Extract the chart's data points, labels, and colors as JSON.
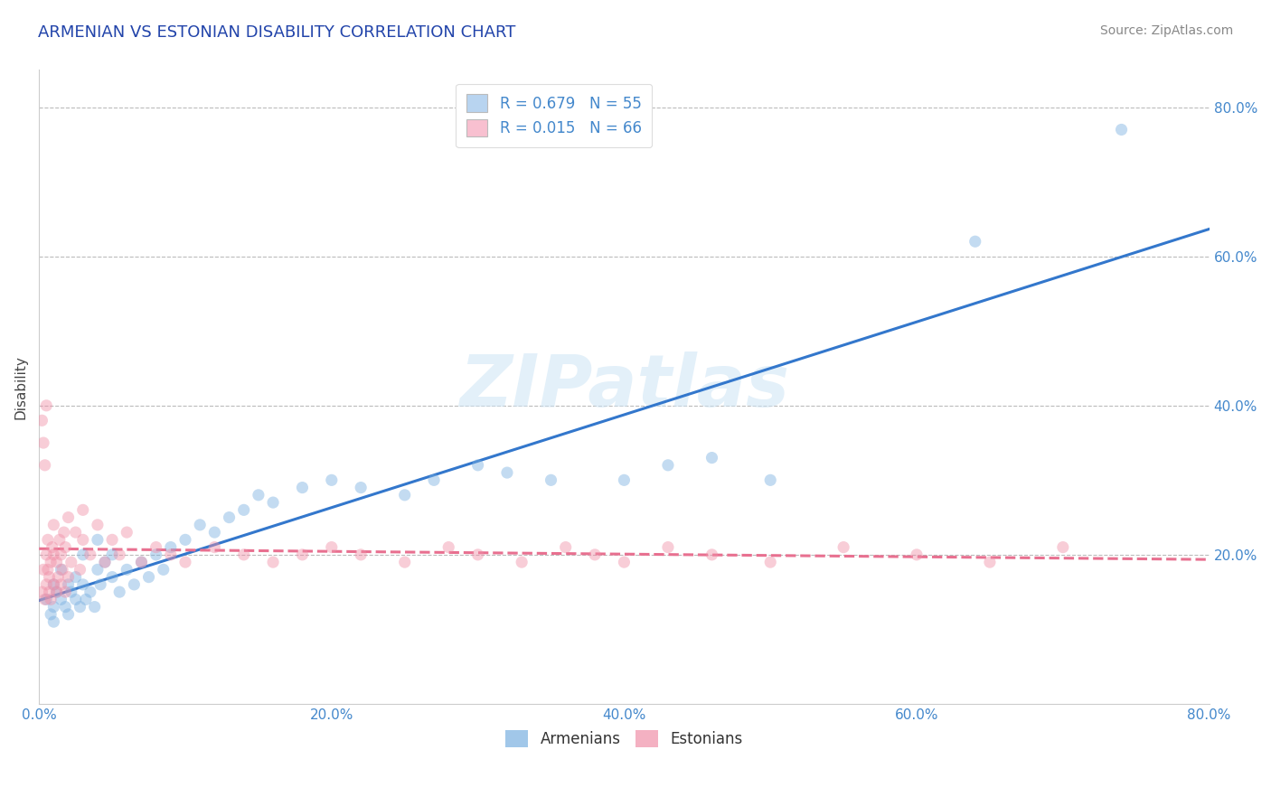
{
  "title": "ARMENIAN VS ESTONIAN DISABILITY CORRELATION CHART",
  "source": "Source: ZipAtlas.com",
  "ylabel": "Disability",
  "watermark": "ZIPatlas",
  "legend_entries": [
    {
      "label": "R = 0.679   N = 55",
      "color": "#b8d4f0"
    },
    {
      "label": "R = 0.015   N = 66",
      "color": "#f8c0d0"
    }
  ],
  "bottom_legend": [
    "Armenians",
    "Estonians"
  ],
  "armenian_color": "#7ab0e0",
  "estonian_color": "#f090a8",
  "armenian_line_color": "#3377cc",
  "estonian_line_color": "#e87090",
  "xlim": [
    0.0,
    0.8
  ],
  "ylim": [
    0.0,
    0.85
  ],
  "xtick_vals": [
    0.0,
    0.2,
    0.4,
    0.6,
    0.8
  ],
  "xtick_labels": [
    "0.0%",
    "20.0%",
    "40.0%",
    "60.0%",
    "80.0%"
  ],
  "ytick_right_labels": [
    "",
    "20.0%",
    "40.0%",
    "60.0%",
    "80.0%"
  ],
  "background_color": "#ffffff",
  "title_color": "#2244aa",
  "title_fontsize": 13,
  "tick_label_color": "#4488cc",
  "axis_label_color": "#444444",
  "marker_size": 90,
  "marker_alpha": 0.45,
  "line_width": 2.2,
  "armenian_x": [
    0.005,
    0.008,
    0.01,
    0.01,
    0.01,
    0.012,
    0.015,
    0.015,
    0.018,
    0.02,
    0.02,
    0.022,
    0.025,
    0.025,
    0.028,
    0.03,
    0.03,
    0.032,
    0.035,
    0.038,
    0.04,
    0.04,
    0.042,
    0.045,
    0.05,
    0.05,
    0.055,
    0.06,
    0.065,
    0.07,
    0.075,
    0.08,
    0.085,
    0.09,
    0.1,
    0.11,
    0.12,
    0.13,
    0.14,
    0.15,
    0.16,
    0.18,
    0.2,
    0.22,
    0.25,
    0.27,
    0.3,
    0.32,
    0.35,
    0.4,
    0.43,
    0.46,
    0.5,
    0.64,
    0.74
  ],
  "armenian_y": [
    0.14,
    0.12,
    0.11,
    0.16,
    0.13,
    0.15,
    0.14,
    0.18,
    0.13,
    0.12,
    0.16,
    0.15,
    0.14,
    0.17,
    0.13,
    0.16,
    0.2,
    0.14,
    0.15,
    0.13,
    0.18,
    0.22,
    0.16,
    0.19,
    0.17,
    0.2,
    0.15,
    0.18,
    0.16,
    0.19,
    0.17,
    0.2,
    0.18,
    0.21,
    0.22,
    0.24,
    0.23,
    0.25,
    0.26,
    0.28,
    0.27,
    0.29,
    0.3,
    0.29,
    0.28,
    0.3,
    0.32,
    0.31,
    0.3,
    0.3,
    0.32,
    0.33,
    0.3,
    0.62,
    0.77
  ],
  "estonian_x": [
    0.002,
    0.003,
    0.004,
    0.005,
    0.005,
    0.006,
    0.006,
    0.007,
    0.007,
    0.008,
    0.008,
    0.009,
    0.01,
    0.01,
    0.01,
    0.012,
    0.012,
    0.013,
    0.014,
    0.015,
    0.015,
    0.016,
    0.017,
    0.018,
    0.018,
    0.02,
    0.02,
    0.022,
    0.025,
    0.028,
    0.03,
    0.03,
    0.035,
    0.04,
    0.045,
    0.05,
    0.055,
    0.06,
    0.07,
    0.08,
    0.09,
    0.1,
    0.12,
    0.14,
    0.16,
    0.18,
    0.2,
    0.22,
    0.25,
    0.28,
    0.3,
    0.33,
    0.36,
    0.38,
    0.4,
    0.43,
    0.46,
    0.5,
    0.55,
    0.6,
    0.65,
    0.7,
    0.002,
    0.003,
    0.004,
    0.005
  ],
  "estonian_y": [
    0.15,
    0.18,
    0.14,
    0.2,
    0.16,
    0.18,
    0.22,
    0.15,
    0.17,
    0.19,
    0.14,
    0.21,
    0.16,
    0.2,
    0.24,
    0.15,
    0.19,
    0.17,
    0.22,
    0.16,
    0.2,
    0.18,
    0.23,
    0.15,
    0.21,
    0.17,
    0.25,
    0.19,
    0.23,
    0.18,
    0.22,
    0.26,
    0.2,
    0.24,
    0.19,
    0.22,
    0.2,
    0.23,
    0.19,
    0.21,
    0.2,
    0.19,
    0.21,
    0.2,
    0.19,
    0.2,
    0.21,
    0.2,
    0.19,
    0.21,
    0.2,
    0.19,
    0.21,
    0.2,
    0.19,
    0.21,
    0.2,
    0.19,
    0.21,
    0.2,
    0.19,
    0.21,
    0.38,
    0.35,
    0.32,
    0.4
  ]
}
